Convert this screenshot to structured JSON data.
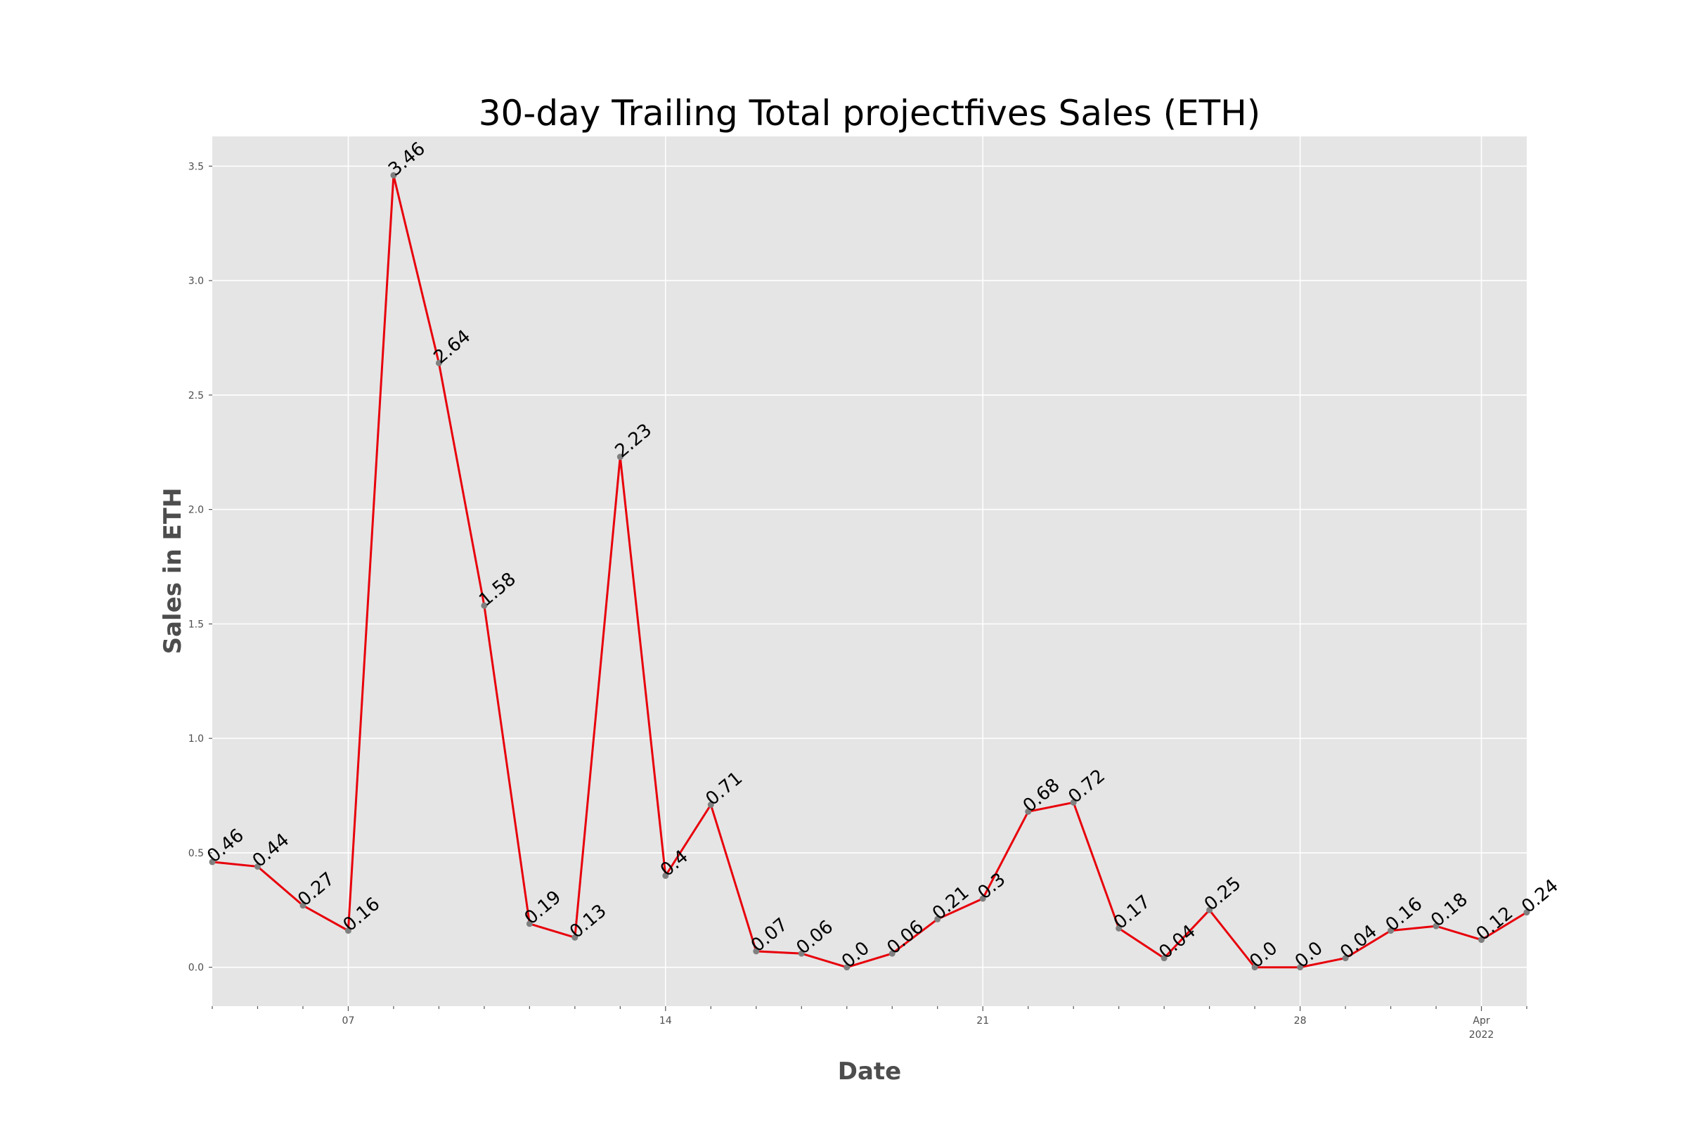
{
  "chart_data": {
    "type": "line",
    "title": "30-day Trailing Total projectfives Sales (ETH)",
    "xlabel": "Date",
    "ylabel": "Sales in ETH",
    "x": [
      "2022-03-04",
      "2022-03-05",
      "2022-03-06",
      "2022-03-07",
      "2022-03-08",
      "2022-03-09",
      "2022-03-10",
      "2022-03-11",
      "2022-03-12",
      "2022-03-13",
      "2022-03-14",
      "2022-03-15",
      "2022-03-16",
      "2022-03-17",
      "2022-03-18",
      "2022-03-19",
      "2022-03-20",
      "2022-03-21",
      "2022-03-22",
      "2022-03-23",
      "2022-03-24",
      "2022-03-25",
      "2022-03-26",
      "2022-03-27",
      "2022-03-28",
      "2022-03-29",
      "2022-03-30",
      "2022-03-31",
      "2022-04-01",
      "2022-04-02"
    ],
    "series": [
      {
        "values": [
          0.46,
          0.44,
          0.27,
          0.16,
          3.46,
          2.64,
          1.58,
          0.19,
          0.13,
          2.23,
          0.4,
          0.71,
          0.07,
          0.06,
          0.0,
          0.06,
          0.21,
          0.3,
          0.68,
          0.72,
          0.17,
          0.04,
          0.25,
          0.0,
          0.0,
          0.04,
          0.16,
          0.18,
          0.12,
          0.24
        ],
        "labels": [
          "0.46",
          "0.44",
          "0.27",
          "0.16",
          "3.46",
          "2.64",
          "1.58",
          "0.19",
          "0.13",
          "2.23",
          "0.4",
          "0.71",
          "0.07",
          "0.06",
          "0.0",
          "0.06",
          "0.21",
          "0.3",
          "0.68",
          "0.72",
          "0.17",
          "0.04",
          "0.25",
          "0.0",
          "0.0",
          "0.04",
          "0.16",
          "0.18",
          "0.12",
          "0.24"
        ],
        "line_color": "#e8000b",
        "marker_color": "#808080"
      }
    ],
    "xlim": [
      "2022-03-04",
      "2022-04-02"
    ],
    "ylim": [
      -0.17,
      3.63
    ],
    "yticks": [
      {
        "value": 0.0,
        "label": "0.0"
      },
      {
        "value": 0.5,
        "label": "0.5"
      },
      {
        "value": 1.0,
        "label": "1.0"
      },
      {
        "value": 1.5,
        "label": "1.5"
      },
      {
        "value": 2.0,
        "label": "2.0"
      },
      {
        "value": 2.5,
        "label": "2.5"
      },
      {
        "value": 3.0,
        "label": "3.0"
      },
      {
        "value": 3.5,
        "label": "3.5"
      }
    ],
    "xticks": [
      {
        "date": "2022-03-07",
        "label": "07"
      },
      {
        "date": "2022-03-14",
        "label": "14"
      },
      {
        "date": "2022-03-21",
        "label": "21"
      },
      {
        "date": "2022-03-28",
        "label": "28"
      },
      {
        "date": "2022-04-01",
        "label": "Apr",
        "label2": "2022"
      }
    ],
    "grid": true,
    "background_color": "#e5e5e5"
  }
}
